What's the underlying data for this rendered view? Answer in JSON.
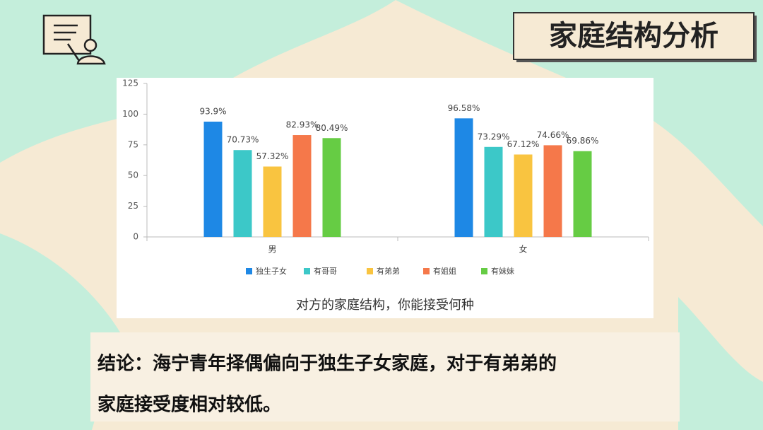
{
  "header": {
    "title": "家庭结构分析"
  },
  "chart_data": {
    "type": "bar",
    "caption": "对方的家庭结构，你能接受何种",
    "categories": [
      "男",
      "女"
    ],
    "series": [
      {
        "name": "独生子女",
        "color": "#1e88e5",
        "values": [
          93.9,
          96.58
        ],
        "value_labels": [
          "93.9%",
          "96.58%"
        ]
      },
      {
        "name": "有哥哥",
        "color": "#3cc8c8",
        "values": [
          70.73,
          73.29
        ],
        "value_labels": [
          "70.73%",
          "73.29%"
        ]
      },
      {
        "name": "有弟弟",
        "color": "#f9c440",
        "values": [
          57.32,
          67.12
        ],
        "value_labels": [
          "57.32%",
          "67.12%"
        ]
      },
      {
        "name": "有姐姐",
        "color": "#f5784a",
        "values": [
          82.93,
          74.66
        ],
        "value_labels": [
          "82.93%",
          "74.66%"
        ]
      },
      {
        "name": "有妹妹",
        "color": "#66cc44",
        "values": [
          80.49,
          69.86
        ],
        "value_labels": [
          "80.49%",
          "69.86%"
        ]
      }
    ],
    "ylim": [
      0,
      125
    ],
    "yticks": [
      0,
      25,
      50,
      75,
      100,
      125
    ],
    "legend": "bottom"
  },
  "conclusion": {
    "lines": [
      "结论：海宁青年择偶偏向于独生子女家庭，对于有弟弟的",
      "家庭接受度相对较低。"
    ]
  }
}
